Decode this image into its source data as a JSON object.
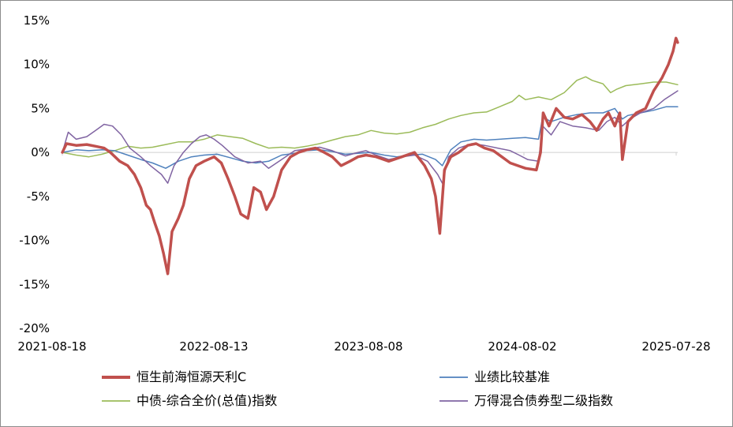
{
  "chart_data": {
    "type": "line",
    "title": "",
    "xlabel": "",
    "ylabel": "",
    "ylim": [
      -20,
      15
    ],
    "yticks": [
      "15%",
      "10%",
      "5%",
      "0%",
      "-5%",
      "-10%",
      "-15%",
      "-20%"
    ],
    "ytick_values": [
      15,
      10,
      5,
      0,
      -5,
      -10,
      -15,
      -20
    ],
    "xlim": [
      "2021-08-18",
      "2025-08-20"
    ],
    "xticks": [
      "2021-08-18",
      "2022-08-13",
      "2023-08-08",
      "2024-08-02",
      "2025-07-28"
    ],
    "grid": false,
    "legend_position": "bottom",
    "series": [
      {
        "name": "恒生前海恒源天利C",
        "color": "#c0504d",
        "width": 3.5,
        "points": [
          [
            "2021-08-18",
            0.0
          ],
          [
            "2021-08-28",
            1.0
          ],
          [
            "2021-09-20",
            0.8
          ],
          [
            "2021-10-15",
            0.9
          ],
          [
            "2021-11-05",
            0.7
          ],
          [
            "2021-11-25",
            0.5
          ],
          [
            "2021-12-10",
            0.0
          ],
          [
            "2022-01-01",
            -1.0
          ],
          [
            "2022-01-20",
            -1.5
          ],
          [
            "2022-02-05",
            -2.5
          ],
          [
            "2022-02-20",
            -4.0
          ],
          [
            "2022-03-05",
            -6.0
          ],
          [
            "2022-03-15",
            -6.5
          ],
          [
            "2022-03-25",
            -8.0
          ],
          [
            "2022-04-05",
            -9.5
          ],
          [
            "2022-04-15",
            -11.5
          ],
          [
            "2022-04-25",
            -13.8
          ],
          [
            "2022-05-05",
            -9.0
          ],
          [
            "2022-05-20",
            -7.5
          ],
          [
            "2022-06-01",
            -6.0
          ],
          [
            "2022-06-15",
            -3.0
          ],
          [
            "2022-07-01",
            -1.5
          ],
          [
            "2022-07-20",
            -1.0
          ],
          [
            "2022-08-13",
            -0.5
          ],
          [
            "2022-08-30",
            -1.2
          ],
          [
            "2022-09-15",
            -3.0
          ],
          [
            "2022-10-01",
            -5.0
          ],
          [
            "2022-10-15",
            -7.0
          ],
          [
            "2022-11-01",
            -7.5
          ],
          [
            "2022-11-15",
            -4.0
          ],
          [
            "2022-12-01",
            -4.5
          ],
          [
            "2022-12-15",
            -6.5
          ],
          [
            "2023-01-01",
            -5.0
          ],
          [
            "2023-01-20",
            -2.0
          ],
          [
            "2023-02-10",
            -0.5
          ],
          [
            "2023-03-01",
            0.0
          ],
          [
            "2023-03-20",
            0.3
          ],
          [
            "2023-04-10",
            0.5
          ],
          [
            "2023-05-01",
            0.0
          ],
          [
            "2023-05-20",
            -0.5
          ],
          [
            "2023-06-10",
            -1.5
          ],
          [
            "2023-07-01",
            -1.0
          ],
          [
            "2023-07-20",
            -0.5
          ],
          [
            "2023-08-08",
            -0.3
          ],
          [
            "2023-09-01",
            -0.5
          ],
          [
            "2023-10-01",
            -1.0
          ],
          [
            "2023-11-01",
            -0.5
          ],
          [
            "2023-12-01",
            0.0
          ],
          [
            "2023-12-25",
            -1.5
          ],
          [
            "2024-01-10",
            -3.0
          ],
          [
            "2024-01-20",
            -5.0
          ],
          [
            "2024-01-30",
            -9.2
          ],
          [
            "2024-02-10",
            -2.0
          ],
          [
            "2024-02-25",
            -0.5
          ],
          [
            "2024-03-15",
            0.0
          ],
          [
            "2024-04-05",
            0.8
          ],
          [
            "2024-04-25",
            1.0
          ],
          [
            "2024-05-15",
            0.5
          ],
          [
            "2024-06-05",
            0.2
          ],
          [
            "2024-06-25",
            -0.5
          ],
          [
            "2024-07-15",
            -1.2
          ],
          [
            "2024-08-02",
            -1.5
          ],
          [
            "2024-08-20",
            -1.8
          ],
          [
            "2024-09-15",
            -2.0
          ],
          [
            "2024-09-25",
            0.0
          ],
          [
            "2024-10-01",
            4.5
          ],
          [
            "2024-10-15",
            3.0
          ],
          [
            "2024-11-01",
            5.0
          ],
          [
            "2024-11-20",
            4.0
          ],
          [
            "2024-12-10",
            3.8
          ],
          [
            "2025-01-01",
            4.3
          ],
          [
            "2025-01-20",
            3.5
          ],
          [
            "2025-02-05",
            2.5
          ],
          [
            "2025-02-20",
            3.8
          ],
          [
            "2025-03-05",
            4.5
          ],
          [
            "2025-03-20",
            3.0
          ],
          [
            "2025-04-01",
            4.5
          ],
          [
            "2025-04-07",
            -0.8
          ],
          [
            "2025-04-20",
            3.5
          ],
          [
            "2025-05-10",
            4.5
          ],
          [
            "2025-06-01",
            5.0
          ],
          [
            "2025-06-20",
            7.0
          ],
          [
            "2025-07-10",
            8.5
          ],
          [
            "2025-07-25",
            10.0
          ],
          [
            "2025-08-05",
            11.5
          ],
          [
            "2025-08-12",
            13.0
          ],
          [
            "2025-08-16",
            12.5
          ]
        ]
      },
      {
        "name": "业绩比较基准",
        "color": "#4f81bd",
        "width": 1.5,
        "points": [
          [
            "2021-08-18",
            0.0
          ],
          [
            "2021-09-20",
            0.3
          ],
          [
            "2021-10-20",
            0.2
          ],
          [
            "2021-11-20",
            0.3
          ],
          [
            "2021-12-20",
            0.2
          ],
          [
            "2022-01-20",
            -0.3
          ],
          [
            "2022-02-20",
            -0.8
          ],
          [
            "2022-03-20",
            -1.2
          ],
          [
            "2022-04-20",
            -1.8
          ],
          [
            "2022-05-20",
            -1.0
          ],
          [
            "2022-06-20",
            -0.5
          ],
          [
            "2022-07-20",
            -0.3
          ],
          [
            "2022-08-20",
            -0.2
          ],
          [
            "2022-09-20",
            -0.6
          ],
          [
            "2022-10-20",
            -1.0
          ],
          [
            "2022-11-20",
            -1.2
          ],
          [
            "2022-12-20",
            -1.0
          ],
          [
            "2023-01-20",
            -0.3
          ],
          [
            "2023-02-20",
            -0.1
          ],
          [
            "2023-03-20",
            0.2
          ],
          [
            "2023-04-20",
            0.3
          ],
          [
            "2023-05-20",
            0.1
          ],
          [
            "2023-06-20",
            -0.2
          ],
          [
            "2023-07-20",
            -0.1
          ],
          [
            "2023-08-20",
            0.0
          ],
          [
            "2023-09-20",
            -0.3
          ],
          [
            "2023-10-20",
            -0.5
          ],
          [
            "2023-11-20",
            -0.3
          ],
          [
            "2023-12-20",
            -0.2
          ],
          [
            "2024-01-20",
            -0.8
          ],
          [
            "2024-02-05",
            -1.5
          ],
          [
            "2024-02-25",
            0.3
          ],
          [
            "2024-03-20",
            1.2
          ],
          [
            "2024-04-20",
            1.5
          ],
          [
            "2024-05-20",
            1.4
          ],
          [
            "2024-06-20",
            1.5
          ],
          [
            "2024-07-20",
            1.6
          ],
          [
            "2024-08-20",
            1.7
          ],
          [
            "2024-09-20",
            1.5
          ],
          [
            "2024-09-30",
            4.0
          ],
          [
            "2024-10-20",
            3.5
          ],
          [
            "2024-11-20",
            4.0
          ],
          [
            "2024-12-20",
            4.3
          ],
          [
            "2025-01-20",
            4.5
          ],
          [
            "2025-02-20",
            4.5
          ],
          [
            "2025-03-20",
            5.0
          ],
          [
            "2025-04-07",
            3.8
          ],
          [
            "2025-04-20",
            4.2
          ],
          [
            "2025-05-20",
            4.5
          ],
          [
            "2025-06-20",
            4.8
          ],
          [
            "2025-07-20",
            5.2
          ],
          [
            "2025-08-16",
            5.2
          ]
        ]
      },
      {
        "name": "中债-综合全价(总值)指数",
        "color": "#9bbb59",
        "width": 1.5,
        "points": [
          [
            "2021-08-18",
            0.0
          ],
          [
            "2021-09-20",
            -0.3
          ],
          [
            "2021-10-20",
            -0.5
          ],
          [
            "2021-11-20",
            -0.2
          ],
          [
            "2021-12-20",
            0.2
          ],
          [
            "2022-01-20",
            0.7
          ],
          [
            "2022-02-20",
            0.5
          ],
          [
            "2022-03-20",
            0.6
          ],
          [
            "2022-04-20",
            0.9
          ],
          [
            "2022-05-20",
            1.2
          ],
          [
            "2022-06-20",
            1.2
          ],
          [
            "2022-07-20",
            1.5
          ],
          [
            "2022-08-20",
            2.0
          ],
          [
            "2022-09-20",
            1.8
          ],
          [
            "2022-10-20",
            1.6
          ],
          [
            "2022-11-20",
            1.0
          ],
          [
            "2022-12-20",
            0.5
          ],
          [
            "2023-01-20",
            0.6
          ],
          [
            "2023-02-20",
            0.5
          ],
          [
            "2023-03-20",
            0.7
          ],
          [
            "2023-04-20",
            1.0
          ],
          [
            "2023-05-20",
            1.4
          ],
          [
            "2023-06-20",
            1.8
          ],
          [
            "2023-07-20",
            2.0
          ],
          [
            "2023-08-20",
            2.5
          ],
          [
            "2023-09-20",
            2.2
          ],
          [
            "2023-10-20",
            2.1
          ],
          [
            "2023-11-20",
            2.3
          ],
          [
            "2023-12-20",
            2.8
          ],
          [
            "2024-01-20",
            3.2
          ],
          [
            "2024-02-20",
            3.8
          ],
          [
            "2024-03-20",
            4.2
          ],
          [
            "2024-04-20",
            4.5
          ],
          [
            "2024-05-20",
            4.6
          ],
          [
            "2024-06-20",
            5.2
          ],
          [
            "2024-07-20",
            5.8
          ],
          [
            "2024-08-05",
            6.5
          ],
          [
            "2024-08-20",
            6.0
          ],
          [
            "2024-09-20",
            6.3
          ],
          [
            "2024-10-20",
            6.0
          ],
          [
            "2024-11-20",
            6.8
          ],
          [
            "2024-12-20",
            8.2
          ],
          [
            "2025-01-10",
            8.6
          ],
          [
            "2025-01-25",
            8.2
          ],
          [
            "2025-02-20",
            7.8
          ],
          [
            "2025-03-10",
            6.8
          ],
          [
            "2025-03-25",
            7.2
          ],
          [
            "2025-04-15",
            7.6
          ],
          [
            "2025-05-20",
            7.8
          ],
          [
            "2025-06-20",
            8.0
          ],
          [
            "2025-07-20",
            8.0
          ],
          [
            "2025-08-16",
            7.7
          ]
        ]
      },
      {
        "name": "万得混合债券型二级指数",
        "color": "#8064a2",
        "width": 1.5,
        "points": [
          [
            "2021-08-18",
            0.0
          ],
          [
            "2021-09-01",
            2.3
          ],
          [
            "2021-09-20",
            1.5
          ],
          [
            "2021-10-15",
            1.8
          ],
          [
            "2021-11-05",
            2.5
          ],
          [
            "2021-11-25",
            3.2
          ],
          [
            "2021-12-15",
            3.0
          ],
          [
            "2022-01-05",
            2.0
          ],
          [
            "2022-01-25",
            0.5
          ],
          [
            "2022-02-20",
            -0.5
          ],
          [
            "2022-03-15",
            -1.5
          ],
          [
            "2022-04-10",
            -2.5
          ],
          [
            "2022-04-25",
            -3.5
          ],
          [
            "2022-05-10",
            -1.5
          ],
          [
            "2022-06-01",
            0.0
          ],
          [
            "2022-06-20",
            1.0
          ],
          [
            "2022-07-10",
            1.8
          ],
          [
            "2022-07-25",
            2.0
          ],
          [
            "2022-08-13",
            1.5
          ],
          [
            "2022-09-01",
            0.8
          ],
          [
            "2022-10-01",
            -0.5
          ],
          [
            "2022-11-01",
            -1.2
          ],
          [
            "2022-12-01",
            -1.0
          ],
          [
            "2022-12-20",
            -1.8
          ],
          [
            "2023-01-20",
            -0.8
          ],
          [
            "2023-02-20",
            0.2
          ],
          [
            "2023-03-20",
            0.4
          ],
          [
            "2023-04-20",
            0.6
          ],
          [
            "2023-05-20",
            0.2
          ],
          [
            "2023-06-20",
            -0.4
          ],
          [
            "2023-07-20",
            0.0
          ],
          [
            "2023-08-08",
            0.2
          ],
          [
            "2023-09-01",
            -0.3
          ],
          [
            "2023-10-01",
            -0.8
          ],
          [
            "2023-11-01",
            -0.5
          ],
          [
            "2023-12-01",
            -0.3
          ],
          [
            "2024-01-01",
            -1.0
          ],
          [
            "2024-01-25",
            -2.5
          ],
          [
            "2024-02-05",
            -3.5
          ],
          [
            "2024-02-20",
            -0.5
          ],
          [
            "2024-03-15",
            0.5
          ],
          [
            "2024-04-15",
            1.0
          ],
          [
            "2024-05-15",
            0.8
          ],
          [
            "2024-06-15",
            0.5
          ],
          [
            "2024-07-15",
            0.2
          ],
          [
            "2024-08-05",
            -0.3
          ],
          [
            "2024-08-25",
            -0.8
          ],
          [
            "2024-09-20",
            -1.0
          ],
          [
            "2024-09-30",
            3.0
          ],
          [
            "2024-10-20",
            2.0
          ],
          [
            "2024-11-10",
            3.5
          ],
          [
            "2024-12-10",
            3.0
          ],
          [
            "2025-01-10",
            2.8
          ],
          [
            "2025-02-10",
            2.5
          ],
          [
            "2025-03-01",
            3.5
          ],
          [
            "2025-03-20",
            4.0
          ],
          [
            "2025-04-07",
            3.0
          ],
          [
            "2025-04-25",
            3.8
          ],
          [
            "2025-05-20",
            4.5
          ],
          [
            "2025-06-20",
            5.0
          ],
          [
            "2025-07-15",
            6.0
          ],
          [
            "2025-08-16",
            7.0
          ]
        ]
      }
    ]
  }
}
